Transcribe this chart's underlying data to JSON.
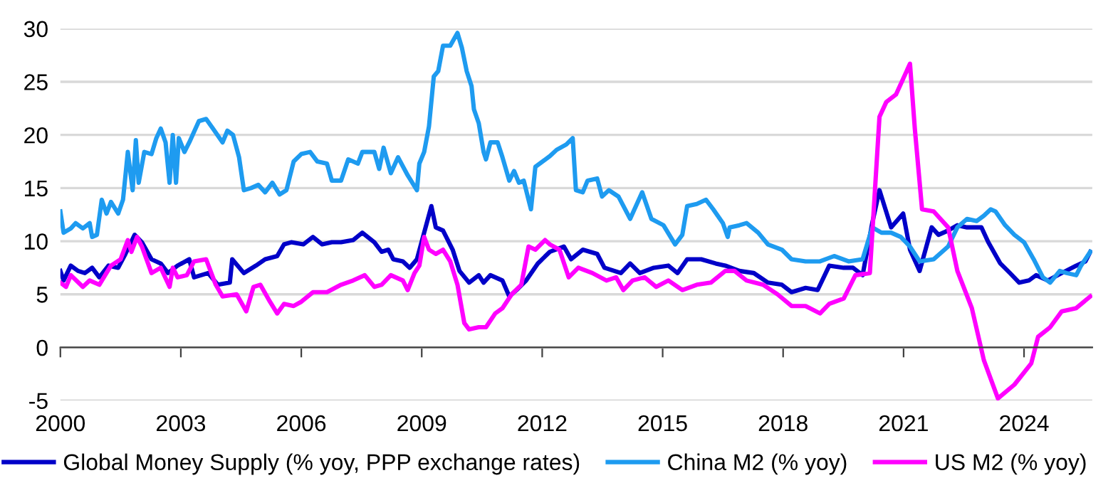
{
  "chart_data": {
    "type": "line",
    "xlim": [
      2000,
      2025.7
    ],
    "xticks": [
      2000,
      2003,
      2006,
      2009,
      2012,
      2015,
      2018,
      2021,
      2024
    ],
    "ylim": [
      -5,
      30
    ],
    "yticks": [
      -5,
      0,
      5,
      10,
      15,
      20,
      25,
      30
    ],
    "grid": "y",
    "legend": "bottom",
    "marker": "none",
    "line_style": "solid",
    "series": [
      {
        "name": "Global Money Supply (% yoy, PPP exchange rates)",
        "color": "#0000c8",
        "x": [
          2000,
          2000.08,
          2000.26,
          2000.44,
          2000.61,
          2000.79,
          2000.97,
          2001.2,
          2001.44,
          2001.62,
          2001.85,
          2002.03,
          2002.27,
          2002.5,
          2002.68,
          2002.92,
          2003.21,
          2003.33,
          2003.68,
          2003.92,
          2004.22,
          2004.28,
          2004.57,
          2004.87,
          2005.1,
          2005.4,
          2005.57,
          2005.75,
          2006.05,
          2006.29,
          2006.52,
          2006.76,
          2006.99,
          2007.29,
          2007.52,
          2007.82,
          2008.0,
          2008.17,
          2008.29,
          2008.53,
          2008.7,
          2008.88,
          2009.06,
          2009.24,
          2009.35,
          2009.53,
          2009.77,
          2009.94,
          2010.18,
          2010.42,
          2010.54,
          2010.71,
          2011.01,
          2011.18,
          2011.36,
          2011.6,
          2011.89,
          2012.19,
          2012.54,
          2012.72,
          2013.01,
          2013.37,
          2013.55,
          2013.96,
          2014.19,
          2014.43,
          2014.78,
          2015.14,
          2015.37,
          2015.61,
          2015.96,
          2016.32,
          2016.56,
          2016.91,
          2017.27,
          2017.62,
          2017.97,
          2018.21,
          2018.56,
          2018.86,
          2019.15,
          2019.51,
          2019.74,
          2019.98,
          2020.22,
          2020.4,
          2020.69,
          2020.99,
          2021.16,
          2021.4,
          2021.7,
          2021.87,
          2022.11,
          2022.34,
          2022.58,
          2022.94,
          2023.11,
          2023.41,
          2023.65,
          2023.88,
          2024.12,
          2024.3,
          2024.59,
          2024.94,
          2025.3,
          2025.53,
          2025.65
        ],
        "values": [
          7.2,
          6.3,
          7.7,
          7.2,
          7.0,
          7.5,
          6.6,
          7.7,
          7.5,
          8.8,
          10.6,
          9.9,
          8.3,
          7.9,
          7.0,
          7.7,
          8.3,
          6.6,
          7.0,
          5.9,
          6.1,
          8.3,
          7.0,
          7.7,
          8.3,
          8.6,
          9.7,
          9.9,
          9.7,
          10.4,
          9.7,
          9.9,
          9.9,
          10.1,
          10.8,
          9.9,
          9.0,
          9.2,
          8.3,
          8.1,
          7.5,
          8.3,
          10.8,
          13.3,
          11.3,
          11.0,
          9.2,
          7.2,
          6.1,
          6.8,
          6.1,
          6.8,
          6.3,
          4.8,
          5.4,
          6.3,
          7.9,
          9.0,
          9.5,
          8.3,
          9.2,
          8.8,
          7.5,
          7.0,
          7.9,
          7.0,
          7.5,
          7.7,
          7.0,
          8.3,
          8.3,
          7.9,
          7.7,
          7.2,
          7.0,
          6.1,
          5.9,
          5.2,
          5.6,
          5.4,
          7.7,
          7.5,
          7.5,
          6.8,
          11.7,
          14.8,
          11.3,
          12.6,
          9.2,
          7.2,
          11.3,
          10.6,
          11.0,
          11.5,
          11.3,
          11.3,
          9.9,
          7.9,
          7.0,
          6.1,
          6.3,
          6.8,
          6.3,
          7.0,
          7.7,
          8.1,
          9.0
        ]
      },
      {
        "name": "China M2 (% yoy)",
        "color": "#1e9bf0",
        "x": [
          2000,
          2000.08,
          2000.26,
          2000.38,
          2000.56,
          2000.73,
          2000.79,
          2000.91,
          2001.03,
          2001.15,
          2001.26,
          2001.44,
          2001.56,
          2001.68,
          2001.8,
          2001.88,
          2001.95,
          2002.09,
          2002.27,
          2002.39,
          2002.5,
          2002.62,
          2002.72,
          2002.8,
          2002.88,
          2002.95,
          2003.09,
          2003.21,
          2003.45,
          2003.63,
          2003.8,
          2004.04,
          2004.16,
          2004.3,
          2004.45,
          2004.57,
          2004.75,
          2004.93,
          2005.1,
          2005.28,
          2005.46,
          2005.63,
          2005.81,
          2006.0,
          2006.22,
          2006.4,
          2006.64,
          2006.76,
          2006.99,
          2007.17,
          2007.41,
          2007.52,
          2007.82,
          2007.94,
          2008.05,
          2008.23,
          2008.41,
          2008.65,
          2008.88,
          2008.94,
          2009.06,
          2009.18,
          2009.3,
          2009.41,
          2009.53,
          2009.71,
          2009.89,
          2010.0,
          2010.12,
          2010.24,
          2010.3,
          2010.42,
          2010.54,
          2010.6,
          2010.71,
          2010.89,
          2011.01,
          2011.18,
          2011.3,
          2011.42,
          2011.54,
          2011.72,
          2011.83,
          2012.01,
          2012.19,
          2012.36,
          2012.6,
          2012.76,
          2012.84,
          2013.01,
          2013.13,
          2013.37,
          2013.49,
          2013.66,
          2013.9,
          2014.19,
          2014.49,
          2014.72,
          2015.02,
          2015.31,
          2015.49,
          2015.61,
          2015.85,
          2016.08,
          2016.26,
          2016.5,
          2016.62,
          2016.67,
          2016.91,
          2017.09,
          2017.38,
          2017.62,
          2017.97,
          2018.21,
          2018.56,
          2018.92,
          2019.27,
          2019.63,
          2019.98,
          2020.22,
          2020.45,
          2020.69,
          2020.93,
          2021.16,
          2021.4,
          2021.75,
          2022.11,
          2022.34,
          2022.58,
          2022.82,
          2023.0,
          2023.17,
          2023.29,
          2023.53,
          2023.76,
          2024.0,
          2024.24,
          2024.47,
          2024.65,
          2024.89,
          2025.06,
          2025.3,
          2025.42,
          2025.65
        ],
        "values": [
          12.8,
          10.8,
          11.2,
          11.7,
          11.2,
          11.7,
          10.4,
          10.6,
          13.9,
          12.6,
          13.7,
          12.6,
          13.9,
          18.4,
          14.8,
          19.5,
          15.5,
          18.4,
          18.2,
          19.7,
          20.6,
          19.3,
          15.5,
          20.0,
          15.5,
          19.7,
          18.4,
          19.3,
          21.3,
          21.5,
          20.6,
          19.3,
          20.4,
          20.0,
          17.9,
          14.8,
          15.0,
          15.3,
          14.6,
          15.5,
          14.4,
          14.8,
          17.5,
          18.2,
          18.4,
          17.5,
          17.3,
          15.7,
          15.7,
          17.7,
          17.3,
          18.4,
          18.4,
          16.8,
          18.8,
          16.4,
          17.9,
          16.2,
          14.8,
          17.3,
          18.4,
          20.8,
          25.5,
          26.0,
          28.4,
          28.4,
          29.6,
          28.2,
          26.0,
          24.6,
          22.4,
          21.1,
          18.4,
          17.7,
          19.3,
          19.3,
          17.9,
          15.7,
          16.6,
          15.5,
          15.7,
          13.0,
          17.0,
          17.5,
          18.0,
          18.6,
          19.1,
          19.7,
          14.8,
          14.6,
          15.7,
          15.9,
          14.2,
          14.8,
          14.2,
          12.1,
          14.6,
          12.1,
          11.5,
          9.7,
          10.6,
          13.3,
          13.5,
          13.9,
          13.0,
          11.7,
          10.4,
          11.3,
          11.5,
          11.7,
          10.8,
          9.7,
          9.2,
          8.3,
          8.1,
          8.1,
          8.6,
          8.1,
          8.3,
          11.3,
          10.8,
          10.8,
          10.4,
          9.5,
          8.1,
          8.3,
          9.5,
          11.3,
          12.1,
          11.9,
          12.4,
          13.0,
          12.8,
          11.5,
          10.6,
          9.9,
          8.3,
          6.6,
          6.1,
          7.2,
          7.0,
          6.8,
          7.7,
          9.0
        ]
      },
      {
        "name": "US M2 (% yoy)",
        "color": "#ff00ff",
        "x": [
          2000,
          2000.14,
          2000.26,
          2000.56,
          2000.73,
          2000.97,
          2001.26,
          2001.5,
          2001.68,
          2001.77,
          2001.91,
          2002.03,
          2002.27,
          2002.5,
          2002.72,
          2002.8,
          2002.92,
          2003.15,
          2003.33,
          2003.63,
          2003.87,
          2004.04,
          2004.39,
          2004.63,
          2004.81,
          2004.98,
          2005.22,
          2005.4,
          2005.57,
          2005.81,
          2006.0,
          2006.29,
          2006.64,
          2006.99,
          2007.29,
          2007.58,
          2007.82,
          2008.0,
          2008.23,
          2008.53,
          2008.65,
          2008.82,
          2008.94,
          2009.06,
          2009.18,
          2009.35,
          2009.53,
          2009.71,
          2009.89,
          2010.06,
          2010.18,
          2010.42,
          2010.6,
          2010.83,
          2011.01,
          2011.24,
          2011.48,
          2011.66,
          2011.83,
          2012.07,
          2012.19,
          2012.43,
          2012.66,
          2012.9,
          2013.25,
          2013.6,
          2013.84,
          2014.02,
          2014.25,
          2014.55,
          2014.84,
          2015.14,
          2015.49,
          2015.85,
          2016.2,
          2016.56,
          2016.79,
          2017.09,
          2017.5,
          2017.86,
          2018.21,
          2018.56,
          2018.92,
          2019.15,
          2019.51,
          2019.8,
          2020.16,
          2020.4,
          2020.57,
          2020.81,
          2021.16,
          2021.28,
          2021.46,
          2021.75,
          2022.11,
          2022.34,
          2022.7,
          2023.0,
          2023.35,
          2023.76,
          2024.18,
          2024.35,
          2024.65,
          2024.94,
          2025.3,
          2025.65
        ],
        "values": [
          6.1,
          5.7,
          6.8,
          5.7,
          6.3,
          5.9,
          7.7,
          8.3,
          10.1,
          9.0,
          10.4,
          9.5,
          7.0,
          7.5,
          5.7,
          7.5,
          6.6,
          6.8,
          8.1,
          8.3,
          5.9,
          4.8,
          5.0,
          3.4,
          5.7,
          5.9,
          4.3,
          3.2,
          4.1,
          3.9,
          4.3,
          5.2,
          5.2,
          5.9,
          6.3,
          6.8,
          5.7,
          5.9,
          6.8,
          6.3,
          5.4,
          7.0,
          7.7,
          10.4,
          9.2,
          8.8,
          9.2,
          8.1,
          5.9,
          2.3,
          1.7,
          1.9,
          1.9,
          3.2,
          3.7,
          5.0,
          5.9,
          9.5,
          9.2,
          10.1,
          9.7,
          9.2,
          6.6,
          7.5,
          7.0,
          6.3,
          6.6,
          5.4,
          6.3,
          6.6,
          5.7,
          6.3,
          5.4,
          5.9,
          6.1,
          7.2,
          7.2,
          6.3,
          5.9,
          5.0,
          3.9,
          3.9,
          3.2,
          4.1,
          4.6,
          6.8,
          7.0,
          21.7,
          23.1,
          23.8,
          26.7,
          20.6,
          13.0,
          12.8,
          11.3,
          7.2,
          3.7,
          -1.2,
          -4.8,
          -3.5,
          -1.5,
          1.0,
          1.9,
          3.4,
          3.7,
          4.8
        ]
      }
    ]
  }
}
